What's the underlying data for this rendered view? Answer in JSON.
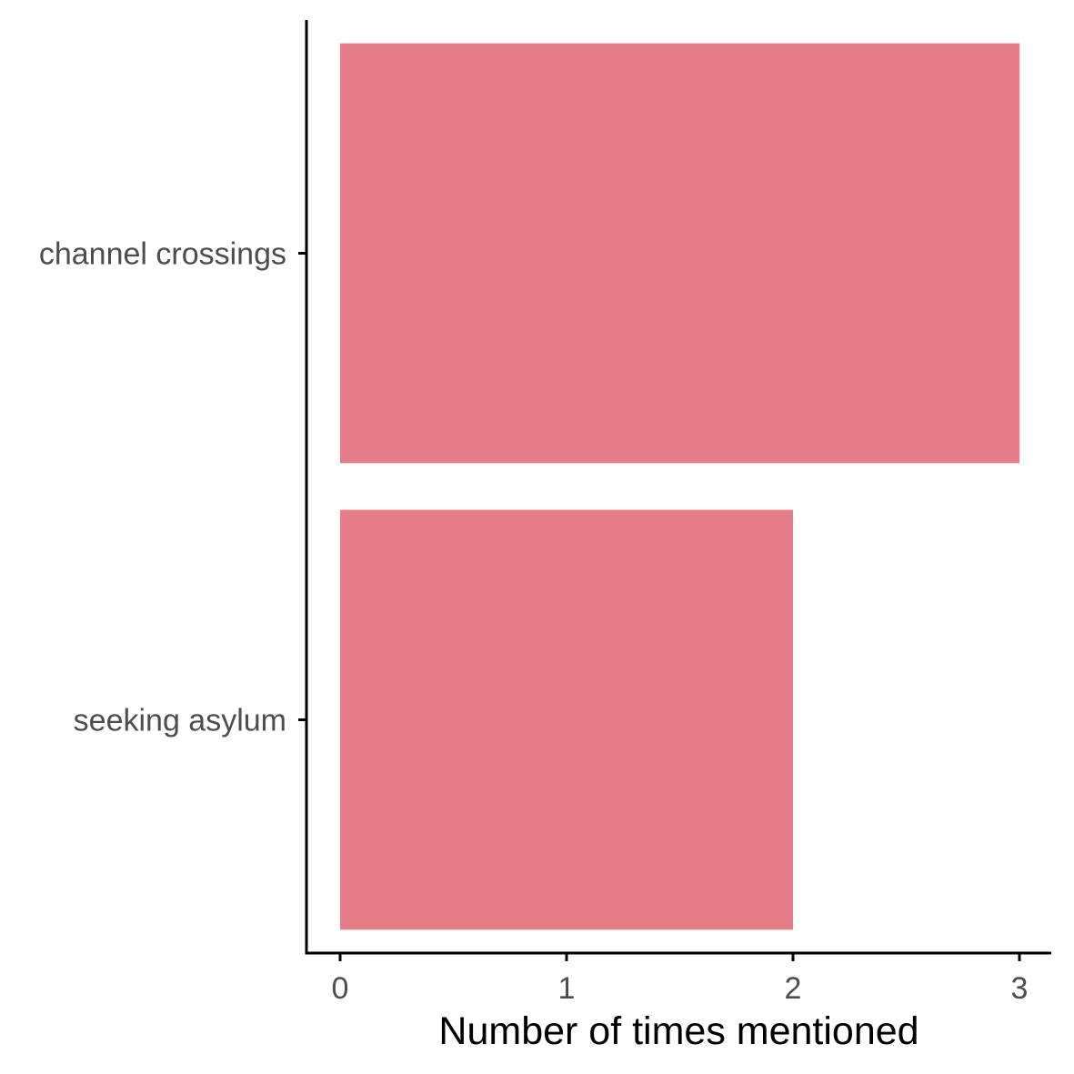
{
  "chart_data": {
    "type": "bar",
    "orientation": "horizontal",
    "categories": [
      "channel crossings",
      "seeking asylum"
    ],
    "values": [
      3,
      2
    ],
    "title": "",
    "xlabel": "Number of times mentioned",
    "ylabel": "",
    "xlim": [
      -0.15,
      3.15
    ],
    "xticks": [
      "0",
      "1",
      "2",
      "3"
    ],
    "grid": false,
    "legend": "none",
    "bar_color": "#e67e8a"
  }
}
